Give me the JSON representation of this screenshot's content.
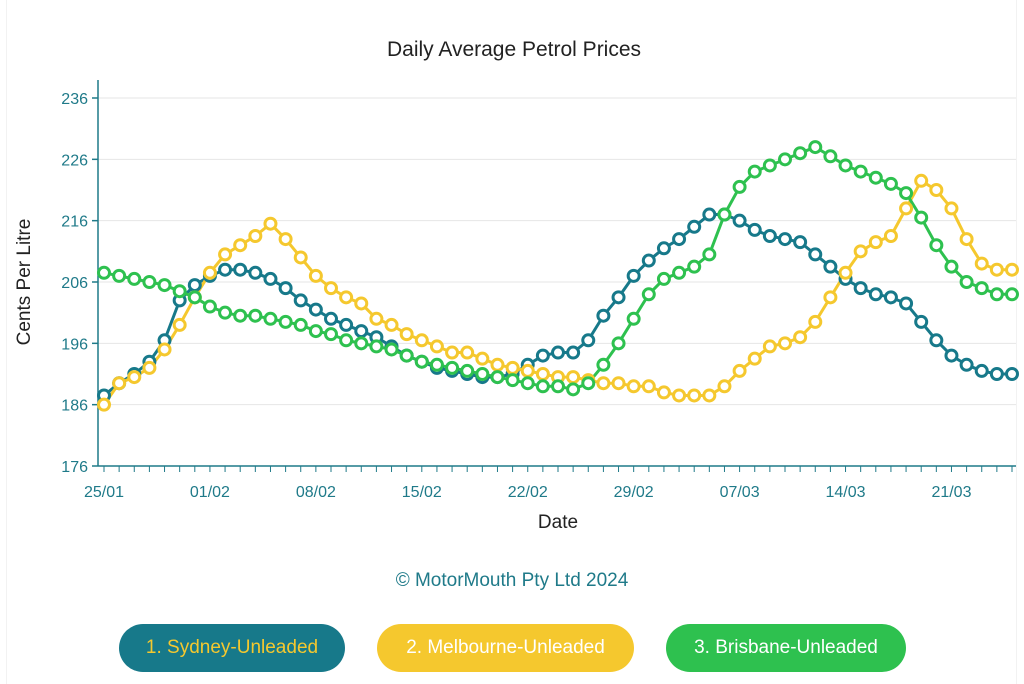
{
  "copyright": "© MotorMouth Pty Ltd 2024",
  "legend": [
    {
      "label": "1. Sydney-Unleaded",
      "bg": "#17798a",
      "text_color": "#f5c82e"
    },
    {
      "label": "2. Melbourne-Unleaded",
      "bg": "#f5c82e",
      "text_color": "#ffffff"
    },
    {
      "label": "3. Brisbane-Unleaded",
      "bg": "#2ec14f",
      "text_color": "#ffffff"
    }
  ],
  "chart_data": {
    "type": "line",
    "title": "Daily Average Petrol Prices",
    "xlabel": "Date",
    "ylabel": "Cents Per Litre",
    "ylim": [
      176,
      236
    ],
    "yticks": [
      176,
      186,
      196,
      206,
      216,
      226,
      236
    ],
    "xlim": [
      "25/01",
      "25/03"
    ],
    "xticks": [
      "25/01",
      "01/02",
      "08/02",
      "15/02",
      "22/02",
      "29/02",
      "07/03",
      "14/03",
      "21/03"
    ],
    "grid": "horizontal",
    "axis_color": "#1f7a89",
    "x": [
      "25/01",
      "26/01",
      "27/01",
      "28/01",
      "29/01",
      "30/01",
      "31/01",
      "01/02",
      "02/02",
      "03/02",
      "04/02",
      "05/02",
      "06/02",
      "07/02",
      "08/02",
      "09/02",
      "10/02",
      "11/02",
      "12/02",
      "13/02",
      "14/02",
      "15/02",
      "16/02",
      "17/02",
      "18/02",
      "19/02",
      "20/02",
      "21/02",
      "22/02",
      "23/02",
      "24/02",
      "25/02",
      "26/02",
      "27/02",
      "28/02",
      "29/02",
      "01/03",
      "02/03",
      "03/03",
      "04/03",
      "05/03",
      "06/03",
      "07/03",
      "08/03",
      "09/03",
      "10/03",
      "11/03",
      "12/03",
      "13/03",
      "14/03",
      "15/03",
      "16/03",
      "17/03",
      "18/03",
      "19/03",
      "20/03",
      "21/03",
      "22/03",
      "23/03",
      "24/03",
      "25/03"
    ],
    "series": [
      {
        "name": "1. Sydney-Unleaded",
        "color": "#17798a",
        "values": [
          187.5,
          189.5,
          191,
          193,
          196.5,
          203,
          205.5,
          207,
          208,
          208,
          207.5,
          206.5,
          205,
          203,
          201.5,
          200,
          199,
          198,
          197,
          195.5,
          194,
          193,
          192,
          191.5,
          191,
          190.5,
          190.5,
          191,
          192.5,
          194,
          194.5,
          194.5,
          196.5,
          200.5,
          203.5,
          207,
          209.5,
          211.5,
          213,
          215,
          217,
          217,
          216,
          214.5,
          213.5,
          213,
          212.5,
          210.5,
          208.5,
          206.5,
          205,
          204,
          203.5,
          202.5,
          199.5,
          196.5,
          194,
          192.5,
          191.5,
          191,
          191
        ]
      },
      {
        "name": "2. Melbourne-Unleaded",
        "color": "#f5c82e",
        "values": [
          186,
          189.5,
          190.5,
          192,
          195,
          199,
          203.5,
          207.5,
          210.5,
          212,
          213.5,
          215.5,
          213,
          210,
          207,
          205,
          203.5,
          202.5,
          200,
          199,
          197.5,
          196.5,
          195.5,
          194.5,
          194.5,
          193.5,
          192.5,
          192,
          191.5,
          191,
          190.5,
          190.5,
          190,
          189.5,
          189.5,
          189,
          189,
          188,
          187.5,
          187.5,
          187.5,
          189,
          191.5,
          193.5,
          195.5,
          196,
          197,
          199.5,
          203.5,
          207.5,
          211,
          212.5,
          213.5,
          218,
          222.5,
          221,
          218,
          213,
          209,
          208,
          208
        ]
      },
      {
        "name": "3. Brisbane-Unleaded",
        "color": "#2ec14f",
        "values": [
          207.5,
          207,
          206.5,
          206,
          205.5,
          204.5,
          203.5,
          202,
          201,
          200.5,
          200.5,
          200,
          199.5,
          199,
          198,
          197.5,
          196.5,
          196,
          195.5,
          195,
          194,
          193,
          192.5,
          192,
          191.5,
          191,
          190.5,
          190,
          189.5,
          189,
          189,
          188.5,
          189.5,
          192.5,
          196,
          200,
          204,
          206.5,
          207.5,
          208.5,
          210.5,
          217,
          221.5,
          224,
          225,
          226,
          227,
          228,
          226.5,
          225,
          224,
          223,
          222,
          220.5,
          216.5,
          212,
          208.5,
          206,
          205,
          204,
          204
        ]
      }
    ]
  }
}
